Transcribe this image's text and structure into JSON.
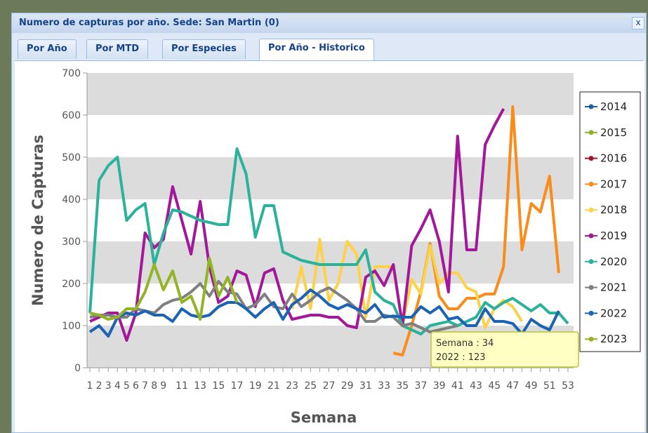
{
  "window": {
    "title": "Numero de capturas por año. Sede: San Martin (0)",
    "close": "x"
  },
  "tabs": [
    "Por Año",
    "Por MTD",
    "Por Especies",
    "Por Año - Historico"
  ],
  "active_tab": 3,
  "chart_data": {
    "type": "line",
    "ylabel": "Numero de Capturas",
    "xlabel": "Semana",
    "categories": [
      1,
      2,
      3,
      4,
      5,
      6,
      7,
      8,
      9,
      null,
      11,
      null,
      13,
      null,
      15,
      null,
      17,
      null,
      19,
      null,
      21,
      null,
      23,
      null,
      25,
      null,
      27,
      null,
      29,
      null,
      31,
      null,
      33,
      null,
      35,
      null,
      37,
      null,
      39,
      null,
      41,
      null,
      43,
      null,
      45,
      null,
      47,
      null,
      49,
      null,
      51,
      null,
      53
    ],
    "ylim": [
      0,
      700
    ],
    "yticks": [
      0,
      100,
      200,
      300,
      400,
      500,
      600,
      700
    ],
    "bands": true,
    "legend": "right",
    "series": [
      {
        "name": "2014",
        "color": "#1f5fa8",
        "values": [
          null,
          null,
          null,
          null,
          null,
          null,
          null,
          null,
          null,
          null,
          null,
          null,
          null,
          null,
          null,
          null,
          null,
          null,
          null,
          null,
          null,
          null,
          null,
          null,
          null,
          null,
          null,
          null,
          null,
          null,
          null,
          null,
          null,
          null,
          null,
          null,
          null,
          null,
          null,
          null,
          null,
          null,
          null,
          null,
          null,
          null,
          null,
          null,
          null,
          null,
          null,
          null,
          null
        ]
      },
      {
        "name": "2015",
        "color": "#8db32b",
        "values": [
          null,
          null,
          null,
          null,
          null,
          null,
          null,
          null,
          null,
          null,
          null,
          null,
          null,
          null,
          null,
          null,
          null,
          null,
          null,
          null,
          null,
          null,
          null,
          null,
          null,
          null,
          null,
          null,
          null,
          null,
          null,
          null,
          null,
          null,
          null,
          null,
          null,
          null,
          null,
          null,
          null,
          null,
          null,
          null,
          null,
          null,
          null,
          null,
          null,
          null,
          null,
          null,
          null
        ]
      },
      {
        "name": "2016",
        "color": "#a0142c",
        "values": [
          null,
          null,
          null,
          null,
          null,
          null,
          null,
          null,
          null,
          null,
          null,
          null,
          null,
          null,
          null,
          null,
          null,
          null,
          null,
          null,
          null,
          null,
          null,
          null,
          null,
          null,
          null,
          null,
          null,
          null,
          null,
          null,
          null,
          null,
          null,
          null,
          null,
          null,
          null,
          null,
          null,
          null,
          null,
          null,
          null,
          null,
          null,
          null,
          null,
          null,
          null,
          null,
          null
        ]
      },
      {
        "name": "2017",
        "color": "#f98c1a",
        "values": [
          null,
          null,
          null,
          null,
          null,
          null,
          null,
          null,
          null,
          null,
          null,
          null,
          null,
          null,
          null,
          null,
          null,
          null,
          null,
          null,
          null,
          null,
          null,
          null,
          null,
          null,
          null,
          null,
          null,
          null,
          null,
          null,
          null,
          35,
          30,
          100,
          180,
          295,
          170,
          140,
          140,
          165,
          165,
          175,
          175,
          240,
          620,
          280,
          390,
          370,
          455,
          225,
          null
        ]
      },
      {
        "name": "2018",
        "color": "#fdd24a",
        "values": [
          null,
          null,
          null,
          null,
          null,
          null,
          null,
          null,
          null,
          null,
          null,
          null,
          null,
          null,
          null,
          null,
          null,
          null,
          null,
          null,
          null,
          null,
          140,
          240,
          140,
          305,
          160,
          200,
          300,
          270,
          120,
          240,
          240,
          240,
          100,
          210,
          175,
          290,
          200,
          225,
          225,
          190,
          180,
          95,
          140,
          160,
          145,
          110,
          null,
          null,
          null,
          null,
          null
        ]
      },
      {
        "name": "2019",
        "color": "#a3189a",
        "values": [
          110,
          120,
          130,
          130,
          65,
          130,
          320,
          285,
          305,
          430,
          350,
          270,
          395,
          240,
          155,
          170,
          230,
          220,
          145,
          225,
          235,
          160,
          115,
          120,
          125,
          125,
          120,
          120,
          100,
          95,
          215,
          230,
          195,
          245,
          100,
          290,
          330,
          375,
          300,
          180,
          550,
          280,
          280,
          530,
          575,
          615,
          null,
          null,
          null,
          null,
          null,
          null,
          null
        ]
      },
      {
        "name": "2020",
        "color": "#2ab39a",
        "values": [
          130,
          445,
          480,
          500,
          350,
          375,
          390,
          245,
          320,
          375,
          370,
          360,
          350,
          345,
          340,
          340,
          520,
          460,
          310,
          385,
          385,
          275,
          265,
          255,
          250,
          245,
          245,
          245,
          245,
          245,
          280,
          180,
          160,
          150,
          100,
          90,
          80,
          100,
          105,
          110,
          100,
          110,
          120,
          155,
          140,
          155,
          165,
          150,
          135,
          150,
          130,
          130,
          105
        ]
      },
      {
        "name": "2021",
        "color": "#808080",
        "values": [
          120,
          125,
          125,
          120,
          120,
          140,
          135,
          130,
          150,
          160,
          165,
          180,
          200,
          170,
          205,
          180,
          175,
          140,
          150,
          175,
          145,
          140,
          175,
          145,
          160,
          180,
          190,
          175,
          160,
          140,
          110,
          110,
          125,
          120,
          100,
          105,
          95,
          85,
          90,
          95,
          100,
          null,
          null,
          null,
          null,
          null,
          null,
          null,
          null,
          null,
          null,
          null,
          null
        ]
      },
      {
        "name": "2022",
        "color": "#1a63b5",
        "values": [
          85,
          100,
          75,
          120,
          130,
          125,
          135,
          125,
          125,
          110,
          140,
          125,
          120,
          125,
          145,
          155,
          155,
          140,
          120,
          140,
          155,
          115,
          150,
          165,
          185,
          170,
          150,
          140,
          150,
          140,
          130,
          150,
          120,
          123,
          120,
          120,
          145,
          130,
          145,
          115,
          120,
          100,
          100,
          140,
          110,
          110,
          105,
          80,
          115,
          100,
          90,
          135,
          null
        ]
      },
      {
        "name": "2023",
        "color": "#92b426",
        "values": [
          130,
          125,
          115,
          120,
          140,
          140,
          180,
          245,
          185,
          230,
          155,
          170,
          115,
          260,
          170,
          215,
          155,
          null,
          null,
          null,
          null,
          null,
          null,
          null,
          null,
          null,
          null,
          null,
          null,
          null,
          null,
          null,
          null,
          null,
          null,
          null,
          null,
          null,
          null,
          null,
          null,
          null,
          null,
          null,
          null,
          null,
          null,
          null,
          null,
          null,
          null,
          null,
          null
        ]
      }
    ],
    "tooltip": [
      "Semana : 34",
      "2022 : 123"
    ]
  }
}
